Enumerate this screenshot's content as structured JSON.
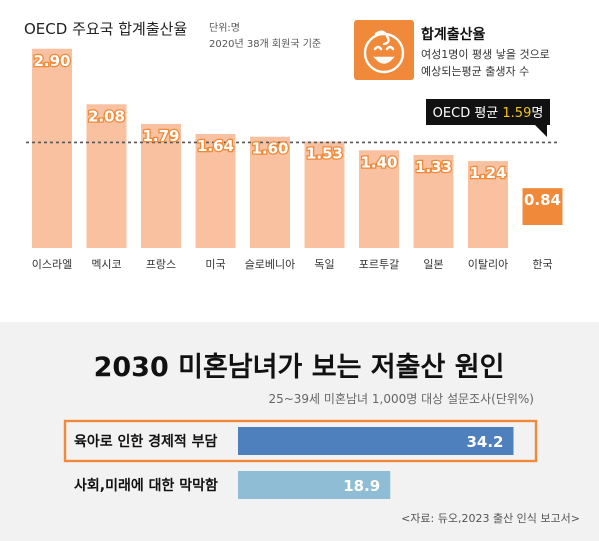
{
  "chart_data": [
    {
      "type": "bar",
      "title": "OECD 주요국 합계출산율",
      "unit_note": "단위:명",
      "subtitle": "2020년 38개 회원국 기준",
      "categories": [
        "이스라엘",
        "멕시코",
        "프랑스",
        "미국",
        "슬로베니아",
        "독일",
        "포르투갈",
        "일본",
        "이탈리아",
        "한국"
      ],
      "values": [
        2.9,
        2.08,
        1.79,
        1.64,
        1.6,
        1.53,
        1.4,
        1.33,
        1.24,
        0.84
      ],
      "value_labels": [
        "2.90",
        "2.08",
        "1.79",
        "1.64",
        "1.60",
        "1.53",
        "1.40",
        "1.33",
        "1.24",
        "0.84"
      ],
      "highlight_category": "한국",
      "reference_line": {
        "value": 1.59,
        "label_prefix": "OECD 평균 ",
        "label_value": "1.59",
        "label_suffix": "명"
      },
      "ylim": [
        0,
        3.0
      ],
      "legend": {
        "title": "합계출산율",
        "line1": "여성1명이 평생 낳을 것으로",
        "line2": "예상되는평균 출생자 수",
        "icon": "baby-face-icon"
      },
      "colors": {
        "bar": "#f9c1a0",
        "highlight": "#f08a3a",
        "avg_box": "#111111",
        "avg_value": "#f5c518"
      }
    },
    {
      "type": "bar",
      "orientation": "horizontal",
      "title": "2030 미혼남녀가 보는 저출산 원인",
      "subtitle": "25~39세 미혼남녀 1,000명 대상 설문조사(단위%)",
      "categories": [
        "육아로 인한 경제적 부담",
        "사회,미래에 대한 막막함"
      ],
      "values": [
        34.2,
        18.9
      ],
      "value_labels": [
        "34.2",
        "18.9"
      ],
      "xlim": [
        0,
        36
      ],
      "highlight_category": "육아로 인한 경제적 부담",
      "source": "<자료: 듀오,2023 출산 인식 보고서>",
      "colors": {
        "bar1": "#4d80bd",
        "bar2": "#8fbdd6",
        "highlight_border": "#f08a3a",
        "panel_bg": "#f2f2f2"
      }
    }
  ]
}
